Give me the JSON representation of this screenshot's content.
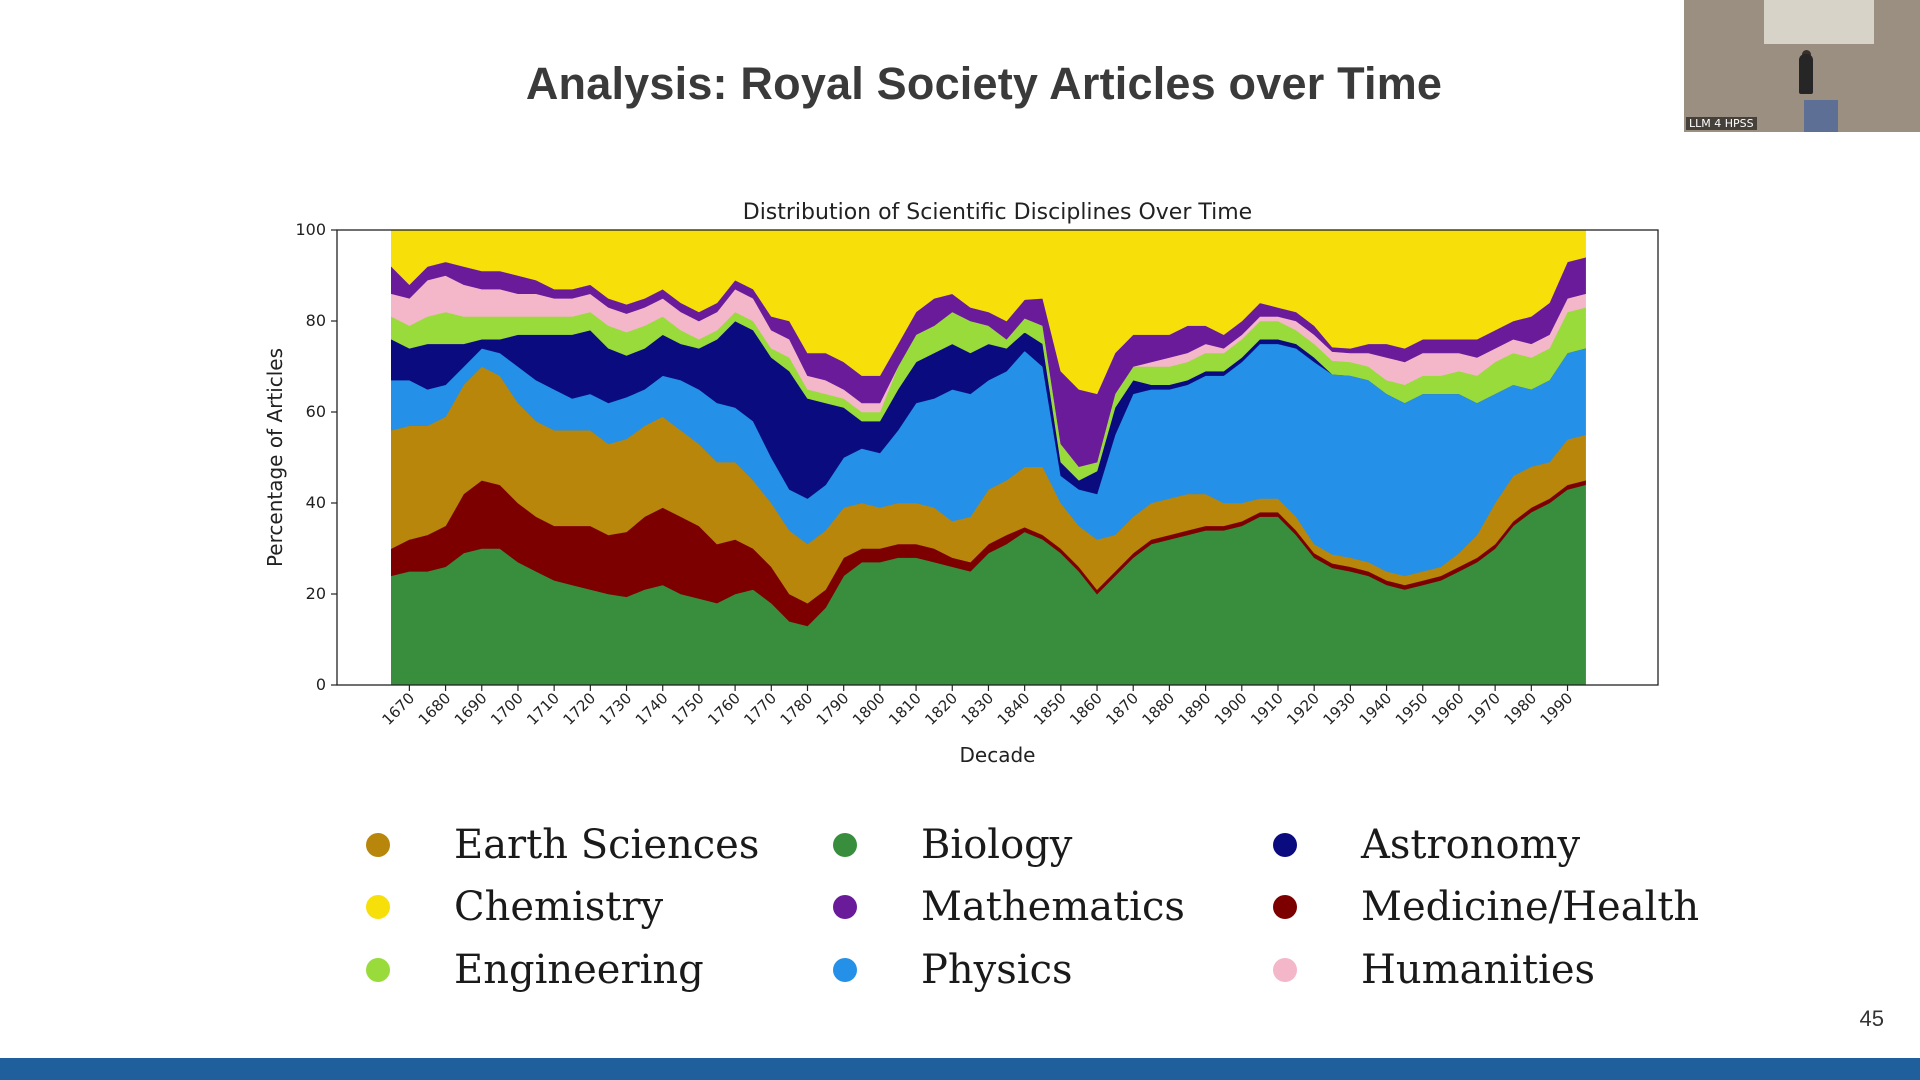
{
  "slide": {
    "title": "Analysis: Royal Society Articles over Time",
    "page_number": "45",
    "camera_label": "LLM 4 HPSS"
  },
  "chart_data": {
    "type": "area",
    "title": "Distribution of Scientific Disciplines Over Time",
    "xlabel": "Decade",
    "ylabel": "Percentage of Articles",
    "xlim": [
      1650,
      2015
    ],
    "ylim": [
      0,
      100
    ],
    "xticks": [
      1670,
      1680,
      1690,
      1700,
      1710,
      1720,
      1730,
      1740,
      1750,
      1760,
      1770,
      1780,
      1790,
      1800,
      1810,
      1820,
      1830,
      1840,
      1850,
      1860,
      1870,
      1880,
      1890,
      1900,
      1910,
      1920,
      1930,
      1940,
      1950,
      1960,
      1970,
      1980,
      1990
    ],
    "yticks": [
      0,
      20,
      40,
      60,
      80,
      100
    ],
    "x": [
      1665,
      1670,
      1675,
      1680,
      1685,
      1690,
      1695,
      1700,
      1705,
      1710,
      1715,
      1720,
      1725,
      1730,
      1735,
      1740,
      1745,
      1750,
      1755,
      1760,
      1765,
      1770,
      1775,
      1780,
      1785,
      1790,
      1795,
      1800,
      1805,
      1810,
      1815,
      1820,
      1825,
      1830,
      1835,
      1840,
      1845,
      1850,
      1855,
      1860,
      1865,
      1870,
      1875,
      1880,
      1885,
      1890,
      1895,
      1900,
      1905,
      1910,
      1915,
      1920,
      1925,
      1930,
      1935,
      1940,
      1945,
      1950,
      1955,
      1960,
      1965,
      1970,
      1975,
      1980,
      1985,
      1990,
      1995
    ],
    "stack_order_bottom_to_top": [
      "Biology",
      "Medicine/Health",
      "Earth Sciences",
      "Physics",
      "Astronomy",
      "Engineering",
      "Humanities",
      "Mathematics",
      "Chemistry"
    ],
    "series": [
      {
        "name": "Biology",
        "color": "#388e3c",
        "values": [
          24,
          25,
          25,
          26,
          29,
          30,
          30,
          27,
          25,
          23,
          22,
          21,
          20,
          19,
          21,
          22,
          20,
          19,
          18,
          20,
          21,
          18,
          14,
          13,
          17,
          24,
          27,
          27,
          28,
          28,
          27,
          26,
          25,
          29,
          31,
          33,
          32,
          29,
          25,
          20,
          24,
          28,
          31,
          32,
          33,
          34,
          34,
          35,
          37,
          37,
          33,
          28,
          26,
          25,
          24,
          22,
          21,
          22,
          23,
          25,
          27,
          30,
          35,
          38,
          40,
          43,
          44
        ]
      },
      {
        "name": "Medicine/Health",
        "color": "#7d0000",
        "values": [
          6,
          7,
          8,
          9,
          13,
          15,
          14,
          13,
          12,
          12,
          13,
          14,
          13,
          14,
          16,
          17,
          17,
          16,
          13,
          12,
          9,
          8,
          6,
          5,
          4,
          4,
          3,
          3,
          3,
          3,
          3,
          2,
          2,
          2,
          2,
          1,
          1,
          1,
          1,
          1,
          1,
          1,
          1,
          1,
          1,
          1,
          1,
          1,
          1,
          1,
          1,
          1,
          1,
          1,
          1,
          1,
          1,
          1,
          1,
          1,
          1,
          1,
          1,
          1,
          1,
          1,
          1
        ]
      },
      {
        "name": "Earth Sciences",
        "color": "#b8860b",
        "values": [
          26,
          25,
          24,
          24,
          24,
          25,
          24,
          22,
          21,
          21,
          21,
          21,
          20,
          20,
          20,
          20,
          19,
          18,
          18,
          17,
          15,
          14,
          14,
          13,
          13,
          11,
          10,
          9,
          9,
          9,
          9,
          8,
          10,
          12,
          12,
          13,
          15,
          10,
          9,
          11,
          8,
          8,
          8,
          8,
          8,
          7,
          5,
          4,
          3,
          3,
          3,
          2,
          2,
          2,
          2,
          2,
          2,
          2,
          2,
          3,
          5,
          9,
          10,
          9,
          8,
          10,
          10
        ]
      },
      {
        "name": "Physics",
        "color": "#2490e8",
        "values": [
          11,
          10,
          8,
          7,
          4,
          4,
          5,
          8,
          9,
          9,
          7,
          8,
          9,
          9,
          8,
          9,
          11,
          12,
          13,
          12,
          13,
          10,
          9,
          10,
          10,
          11,
          12,
          12,
          16,
          22,
          24,
          29,
          27,
          24,
          24,
          25,
          22,
          6,
          8,
          10,
          22,
          27,
          25,
          24,
          24,
          26,
          28,
          31,
          34,
          34,
          37,
          40,
          40,
          40,
          40,
          39,
          38,
          39,
          38,
          35,
          29,
          24,
          20,
          17,
          18,
          19,
          19
        ]
      },
      {
        "name": "Astronomy",
        "color": "#0b0b80",
        "values": [
          9,
          7,
          10,
          9,
          5,
          2,
          3,
          7,
          10,
          12,
          14,
          14,
          12,
          9,
          9,
          9,
          8,
          9,
          14,
          19,
          20,
          22,
          26,
          22,
          18,
          11,
          6,
          7,
          9,
          9,
          10,
          10,
          9,
          8,
          5,
          4,
          5,
          3,
          2,
          5,
          6,
          3,
          1,
          1,
          1,
          1,
          1,
          1,
          1,
          1,
          1,
          1,
          0,
          0,
          0,
          0,
          0,
          0,
          0,
          0,
          0,
          0,
          0,
          0,
          0,
          0,
          0
        ]
      },
      {
        "name": "Engineering",
        "color": "#99db3b",
        "values": [
          5,
          5,
          6,
          7,
          6,
          5,
          5,
          4,
          4,
          4,
          4,
          4,
          5,
          5,
          5,
          4,
          3,
          2,
          2,
          2,
          2,
          2,
          3,
          2,
          2,
          2,
          2,
          2,
          5,
          6,
          6,
          7,
          7,
          4,
          2,
          3,
          4,
          4,
          3,
          2,
          3,
          3,
          4,
          4,
          4,
          4,
          4,
          4,
          4,
          4,
          3,
          3,
          3,
          3,
          3,
          3,
          4,
          4,
          4,
          5,
          6,
          7,
          7,
          7,
          7,
          9,
          9
        ]
      },
      {
        "name": "Humanities",
        "color": "#f4b6c9",
        "values": [
          5,
          6,
          8,
          8,
          7,
          6,
          6,
          5,
          5,
          4,
          4,
          4,
          4,
          4,
          4,
          4,
          4,
          4,
          4,
          5,
          5,
          4,
          4,
          3,
          3,
          2,
          2,
          2,
          0,
          0,
          0,
          0,
          0,
          0,
          0,
          0,
          0,
          0,
          0,
          0,
          0,
          0,
          1,
          2,
          2,
          2,
          1,
          1,
          1,
          1,
          2,
          2,
          2,
          2,
          3,
          5,
          5,
          5,
          5,
          4,
          4,
          3,
          3,
          3,
          3,
          3,
          3
        ]
      },
      {
        "name": "Mathematics",
        "color": "#6a1b9a",
        "values": [
          6,
          3,
          3,
          3,
          4,
          4,
          4,
          4,
          3,
          2,
          2,
          2,
          2,
          2,
          2,
          2,
          2,
          2,
          2,
          2,
          2,
          3,
          4,
          5,
          6,
          6,
          6,
          6,
          5,
          5,
          6,
          4,
          3,
          3,
          4,
          4,
          6,
          16,
          17,
          15,
          9,
          7,
          6,
          5,
          6,
          4,
          3,
          3,
          3,
          2,
          2,
          2,
          1,
          1,
          2,
          3,
          3,
          3,
          3,
          3,
          4,
          4,
          4,
          6,
          7,
          8,
          8
        ]
      },
      {
        "name": "Chemistry",
        "color": "#f7e00a",
        "values": [
          8,
          12,
          8,
          7,
          8,
          9,
          9,
          10,
          11,
          13,
          13,
          12,
          15,
          16,
          15,
          13,
          16,
          18,
          16,
          11,
          13,
          19,
          20,
          27,
          27,
          29,
          32,
          32,
          25,
          18,
          15,
          14,
          17,
          18,
          20,
          15,
          15,
          31,
          35,
          36,
          27,
          23,
          23,
          23,
          21,
          21,
          23,
          20,
          16,
          17,
          18,
          21,
          26,
          26,
          25,
          25,
          26,
          24,
          24,
          24,
          24,
          22,
          20,
          19,
          16,
          7,
          6
        ]
      }
    ],
    "legend": {
      "layout": "3-column grid below chart",
      "entries": [
        "Earth Sciences",
        "Biology",
        "Astronomy",
        "Chemistry",
        "Mathematics",
        "Medicine/Health",
        "Engineering",
        "Physics",
        "Humanities"
      ]
    }
  }
}
